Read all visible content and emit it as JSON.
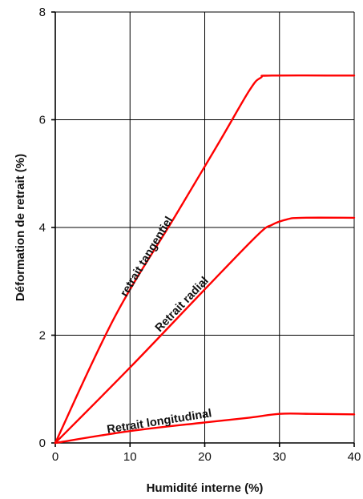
{
  "chart_data": {
    "type": "line",
    "xlabel": "Humidité interne (%)",
    "ylabel": "Déformation de retrait (%)",
    "xlim": [
      0,
      40
    ],
    "ylim": [
      0,
      8
    ],
    "xticks": [
      0,
      10,
      20,
      30,
      40
    ],
    "yticks": [
      0,
      2,
      4,
      6,
      8
    ],
    "x_tick_labels": [
      "0",
      "10",
      "20",
      "30",
      "40"
    ],
    "y_tick_labels": [
      "0",
      "2",
      "4",
      "6",
      "8"
    ],
    "grid": true,
    "legend": "none",
    "series_color": "#ff0000",
    "series": [
      {
        "name": "retrait tangentiel",
        "points": [
          [
            0,
            0
          ],
          [
            8,
            2.35
          ],
          [
            16,
            4.2
          ],
          [
            22,
            5.6
          ],
          [
            26,
            6.55
          ],
          [
            27.5,
            6.78
          ],
          [
            29,
            6.82
          ],
          [
            40,
            6.82
          ]
        ]
      },
      {
        "name": "Retrait radial",
        "points": [
          [
            0,
            0
          ],
          [
            10,
            1.4
          ],
          [
            20,
            2.85
          ],
          [
            27,
            3.85
          ],
          [
            29,
            4.05
          ],
          [
            31,
            4.15
          ],
          [
            33,
            4.18
          ],
          [
            40,
            4.18
          ]
        ]
      },
      {
        "name": "Retrait longitudinal",
        "points": [
          [
            0,
            0
          ],
          [
            10,
            0.22
          ],
          [
            20,
            0.38
          ],
          [
            26,
            0.47
          ],
          [
            30,
            0.54
          ],
          [
            34,
            0.54
          ],
          [
            40,
            0.53
          ]
        ]
      }
    ],
    "annotations": [
      {
        "text": "retrait tangentiel",
        "x": 9.5,
        "y": 2.7,
        "series": 0
      },
      {
        "text": "Retrait radial",
        "x": 14.0,
        "y": 2.05,
        "series": 1
      },
      {
        "text": "Retrait longitudinal",
        "x": 7.0,
        "y": 0.18,
        "series": 2
      }
    ]
  }
}
